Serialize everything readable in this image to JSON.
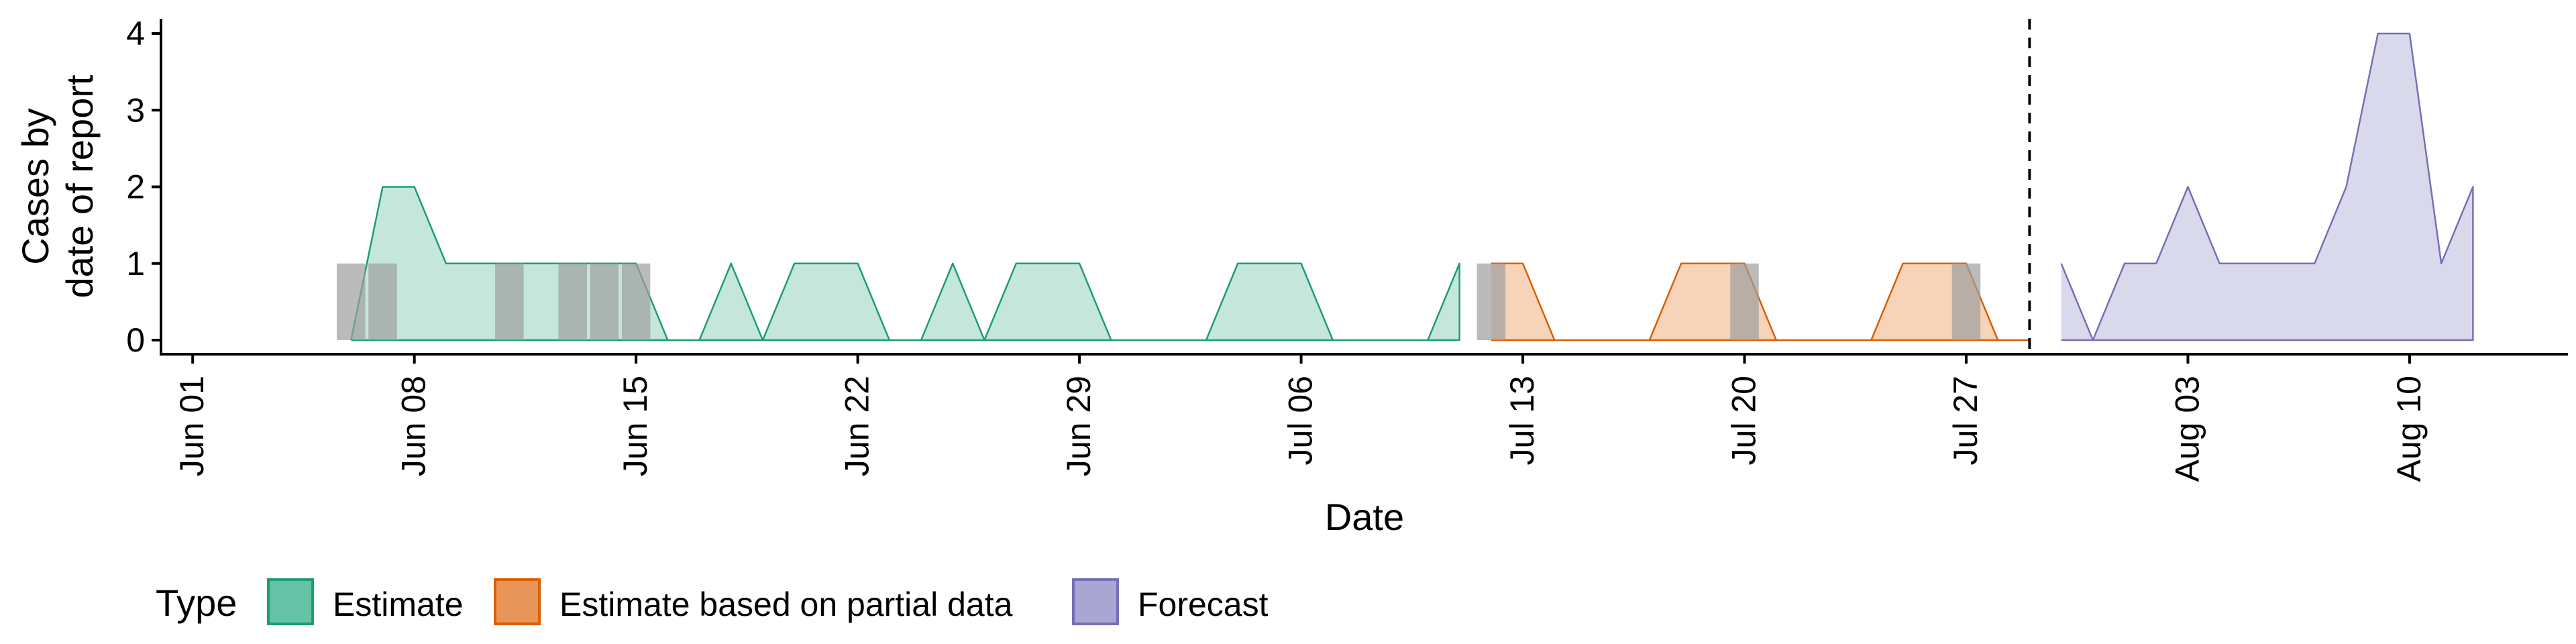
{
  "chart_data": {
    "type": "area",
    "xlabel": "Date",
    "ylabel_lines": [
      "Cases by",
      "date of report"
    ],
    "ylim": [
      0,
      4
    ],
    "xlim": [
      "2020-05-31",
      "2020-08-15"
    ],
    "yticks": [
      0,
      1,
      2,
      3,
      4
    ],
    "x_ticks": [
      {
        "date": "2020-06-01",
        "label": "Jun 01"
      },
      {
        "date": "2020-06-08",
        "label": "Jun 08"
      },
      {
        "date": "2020-06-15",
        "label": "Jun 15"
      },
      {
        "date": "2020-06-22",
        "label": "Jun 22"
      },
      {
        "date": "2020-06-29",
        "label": "Jun 29"
      },
      {
        "date": "2020-07-06",
        "label": "Jul 06"
      },
      {
        "date": "2020-07-13",
        "label": "Jul 13"
      },
      {
        "date": "2020-07-20",
        "label": "Jul 20"
      },
      {
        "date": "2020-07-27",
        "label": "Jul 27"
      },
      {
        "date": "2020-08-03",
        "label": "Aug 03"
      },
      {
        "date": "2020-08-10",
        "label": "Aug 10"
      }
    ],
    "grid": false,
    "vline": {
      "date": "2020-07-29",
      "style": "dashed"
    },
    "legend": {
      "title": "Type",
      "placement": "bottom",
      "entries": [
        {
          "label": "Estimate",
          "fill": "#66c2a5",
          "stroke": "#1b9e77"
        },
        {
          "label": "Estimate based on partial data",
          "fill": "#e8955a",
          "stroke": "#d95f02"
        },
        {
          "label": "Forecast",
          "fill": "#a9a6d3",
          "stroke": "#7570b3"
        }
      ]
    },
    "series": [
      {
        "name": "Estimate",
        "fill": "#c5e6da",
        "stroke": "#1b9e77",
        "points": [
          [
            "2020-06-06",
            0
          ],
          [
            "2020-06-07",
            2
          ],
          [
            "2020-06-08",
            2
          ],
          [
            "2020-06-09",
            1
          ],
          [
            "2020-06-10",
            1
          ],
          [
            "2020-06-11",
            1
          ],
          [
            "2020-06-12",
            1
          ],
          [
            "2020-06-13",
            1
          ],
          [
            "2020-06-14",
            1
          ],
          [
            "2020-06-15",
            1
          ],
          [
            "2020-06-16",
            0
          ],
          [
            "2020-06-17",
            0
          ],
          [
            "2020-06-18",
            1
          ],
          [
            "2020-06-19",
            0
          ],
          [
            "2020-06-20",
            1
          ],
          [
            "2020-06-21",
            1
          ],
          [
            "2020-06-22",
            1
          ],
          [
            "2020-06-23",
            0
          ],
          [
            "2020-06-24",
            0
          ],
          [
            "2020-06-25",
            1
          ],
          [
            "2020-06-26",
            0
          ],
          [
            "2020-06-27",
            1
          ],
          [
            "2020-06-28",
            1
          ],
          [
            "2020-06-29",
            1
          ],
          [
            "2020-06-30",
            0
          ],
          [
            "2020-07-01",
            0
          ],
          [
            "2020-07-02",
            0
          ],
          [
            "2020-07-03",
            0
          ],
          [
            "2020-07-04",
            1
          ],
          [
            "2020-07-05",
            1
          ],
          [
            "2020-07-06",
            1
          ],
          [
            "2020-07-07",
            0
          ],
          [
            "2020-07-08",
            0
          ],
          [
            "2020-07-09",
            0
          ],
          [
            "2020-07-10",
            0
          ],
          [
            "2020-07-11",
            1
          ]
        ]
      },
      {
        "name": "Estimate based on partial data",
        "fill": "#f7d3b8",
        "stroke": "#d95f02",
        "points": [
          [
            "2020-07-12",
            1
          ],
          [
            "2020-07-13",
            1
          ],
          [
            "2020-07-14",
            0
          ],
          [
            "2020-07-15",
            0
          ],
          [
            "2020-07-16",
            0
          ],
          [
            "2020-07-17",
            0
          ],
          [
            "2020-07-18",
            1
          ],
          [
            "2020-07-19",
            1
          ],
          [
            "2020-07-20",
            1
          ],
          [
            "2020-07-21",
            0
          ],
          [
            "2020-07-22",
            0
          ],
          [
            "2020-07-23",
            0
          ],
          [
            "2020-07-24",
            0
          ],
          [
            "2020-07-25",
            1
          ],
          [
            "2020-07-26",
            1
          ],
          [
            "2020-07-27",
            1
          ],
          [
            "2020-07-28",
            0
          ],
          [
            "2020-07-29",
            0
          ]
        ]
      },
      {
        "name": "Forecast",
        "fill": "#dad9ec",
        "stroke": "#7570b3",
        "points": [
          [
            "2020-07-30",
            1
          ],
          [
            "2020-07-31",
            0
          ],
          [
            "2020-08-01",
            1
          ],
          [
            "2020-08-02",
            1
          ],
          [
            "2020-08-03",
            2
          ],
          [
            "2020-08-04",
            1
          ],
          [
            "2020-08-05",
            1
          ],
          [
            "2020-08-06",
            1
          ],
          [
            "2020-08-07",
            1
          ],
          [
            "2020-08-08",
            2
          ],
          [
            "2020-08-09",
            4
          ],
          [
            "2020-08-10",
            4
          ],
          [
            "2020-08-11",
            1
          ],
          [
            "2020-08-12",
            2
          ]
        ]
      }
    ],
    "observed_bars": {
      "fill": "#9e9e9e",
      "value": 1,
      "dates": [
        "2020-06-06",
        "2020-06-07",
        "2020-06-11",
        "2020-06-13",
        "2020-06-14",
        "2020-06-15",
        "2020-07-12",
        "2020-07-20",
        "2020-07-27"
      ]
    }
  }
}
